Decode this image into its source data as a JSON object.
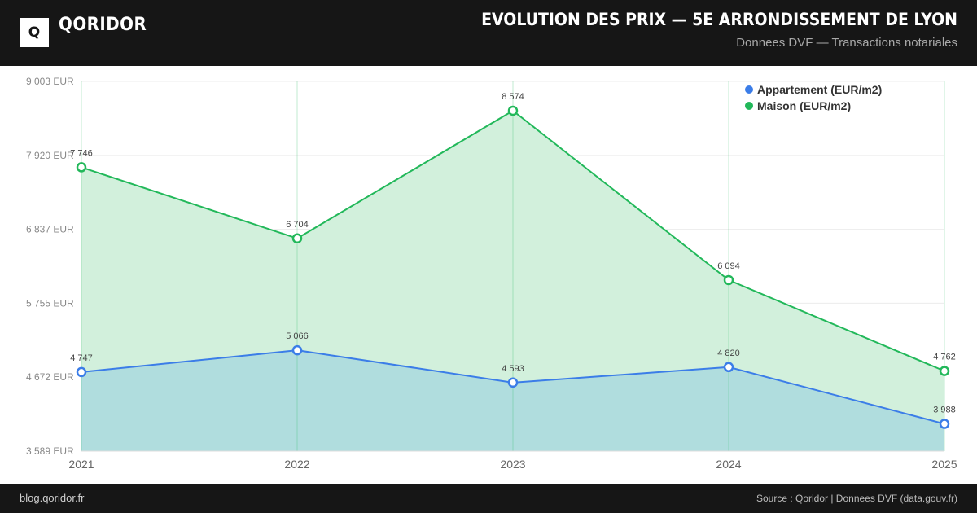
{
  "header": {
    "logo_letter": "Q",
    "brand": "QORIDOR",
    "title": "EVOLUTION DES PRIX — 5E ARRONDISSEMENT DE LYON",
    "subtitle": "Donnees DVF — Transactions notariales"
  },
  "footer": {
    "site": "blog.qoridor.fr",
    "source": "Source : Qoridor | Donnees DVF (data.gouv.fr)"
  },
  "colors": {
    "appartement": "#3b7de8",
    "maison": "#22b85a",
    "maison_fill": "#d2f0dc",
    "appartement_fill": "#b0ddde",
    "header_bg": "#161616"
  },
  "chart_data": {
    "type": "area",
    "title": "EVOLUTION DES PRIX — 5E ARRONDISSEMENT DE LYON",
    "subtitle": "Donnees DVF — Transactions notariales",
    "categories": [
      "2021",
      "2022",
      "2023",
      "2024",
      "2025"
    ],
    "ylim": [
      3589,
      9003
    ],
    "y_ticks": [
      3589,
      4672,
      5755,
      6837,
      7920,
      9003
    ],
    "y_tick_labels": [
      "3 589 EUR",
      "4 672 EUR",
      "5 755 EUR",
      "6 837 EUR",
      "7 920 EUR",
      "9 003 EUR"
    ],
    "legend_position": "top-right",
    "grid": true,
    "series": [
      {
        "name": "Appartement (EUR/m2)",
        "values": [
          4747,
          5066,
          4593,
          4820,
          3988
        ],
        "labels": [
          "4 747",
          "5 066",
          "4 593",
          "4 820",
          "3 988"
        ],
        "color": "#3b7de8"
      },
      {
        "name": "Maison (EUR/m2)",
        "values": [
          7746,
          6704,
          8574,
          6094,
          4762
        ],
        "labels": [
          "7 746",
          "6 704",
          "8 574",
          "6 094",
          "4 762"
        ],
        "color": "#22b85a"
      }
    ]
  }
}
